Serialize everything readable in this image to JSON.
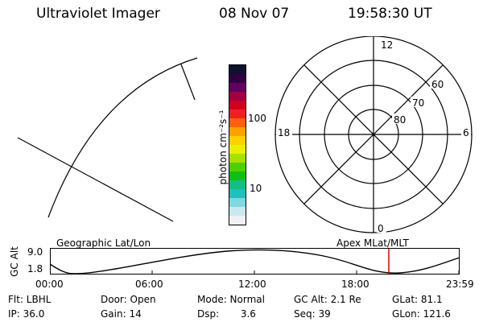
{
  "header": {
    "instrument": "Ultraviolet Imager",
    "date": "08 Nov 07",
    "time": "19:58:30 UT"
  },
  "colorbar": {
    "unit_label": "photon cm⁻²s⁻¹",
    "ticks": [
      "100",
      "10"
    ],
    "colors": [
      "#101030",
      "#300040",
      "#600060",
      "#a00040",
      "#d00020",
      "#f02020",
      "#ff6010",
      "#ffa000",
      "#ffd000",
      "#e8f000",
      "#a8e000",
      "#50d000",
      "#10c010",
      "#10c080",
      "#20c0c0",
      "#80d8e0",
      "#c8e8f0",
      "#f0f0f0"
    ]
  },
  "polar_plot": {
    "clock_labels": [
      "12",
      "18",
      "6",
      "0"
    ],
    "lat_labels": [
      "60",
      "70",
      "80"
    ]
  },
  "timeline": {
    "left_title": "Geographic Lat/Lon",
    "right_title": "Apex  MLat/MLT",
    "y_axis_label": "GC Alt",
    "y_ticks": [
      "9.0",
      "1.8"
    ],
    "x_ticks": [
      "00:00",
      "06:00",
      "12:00",
      "18:00",
      "23:59"
    ],
    "marker_color": "#e00000"
  },
  "info": {
    "filter": "Flt: LBHL",
    "door": "Door: Open",
    "mode": "Mode: Normal",
    "gc_alt": "GC Alt: 2.1 Re",
    "glat": "GLat:  81.1",
    "ip": "IP: 36.0",
    "gain": "Gain: 14",
    "dsp": "Dsp:       3.6",
    "seq": "Seq: 39",
    "glon": "GLon: 121.6"
  }
}
